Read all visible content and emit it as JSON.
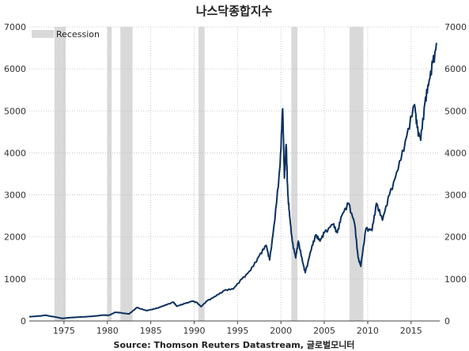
{
  "chart_data": {
    "type": "line",
    "title": "나스닥종합지수",
    "source": "Source: Thomson Reuters Datastream, 글로벌모니터",
    "xlabel": "",
    "ylabel": "",
    "xlim": [
      1971,
      2018.3
    ],
    "ylim": [
      0,
      7000
    ],
    "x_ticks": [
      1975,
      1980,
      1985,
      1990,
      1995,
      2000,
      2005,
      2010,
      2015
    ],
    "y_ticks": [
      0,
      1000,
      2000,
      3000,
      4000,
      5000,
      6000,
      7000
    ],
    "grid": true,
    "legend": {
      "position": "top-left",
      "entries": [
        "Recession"
      ]
    },
    "colors": {
      "line": "#0b3160",
      "recession": "#d9d9d9",
      "grid": "#bbbbbb"
    },
    "recessions": [
      [
        1973.9,
        1975.2
      ],
      [
        1980.0,
        1980.5
      ],
      [
        1981.5,
        1982.9
      ],
      [
        1990.5,
        1991.2
      ],
      [
        2001.2,
        2001.9
      ],
      [
        2007.9,
        2009.5
      ]
    ],
    "series": [
      {
        "values": [
          [
            1971.0,
            100
          ],
          [
            1972.0,
            115
          ],
          [
            1972.9,
            135
          ],
          [
            1973.5,
            110
          ],
          [
            1974.0,
            95
          ],
          [
            1974.8,
            60
          ],
          [
            1975.5,
            75
          ],
          [
            1976.5,
            90
          ],
          [
            1977.5,
            100
          ],
          [
            1978.5,
            115
          ],
          [
            1979.5,
            140
          ],
          [
            1980.2,
            135
          ],
          [
            1980.9,
            205
          ],
          [
            1981.5,
            195
          ],
          [
            1982.5,
            165
          ],
          [
            1983.4,
            320
          ],
          [
            1984.5,
            245
          ],
          [
            1985.5,
            290
          ],
          [
            1986.5,
            360
          ],
          [
            1987.6,
            450
          ],
          [
            1988.0,
            350
          ],
          [
            1989.0,
            420
          ],
          [
            1989.8,
            470
          ],
          [
            1990.3,
            440
          ],
          [
            1990.8,
            340
          ],
          [
            1991.5,
            480
          ],
          [
            1992.5,
            590
          ],
          [
            1993.5,
            730
          ],
          [
            1994.5,
            760
          ],
          [
            1995.5,
            1000
          ],
          [
            1996.5,
            1200
          ],
          [
            1997.5,
            1550
          ],
          [
            1998.3,
            1800
          ],
          [
            1998.7,
            1450
          ],
          [
            1999.3,
            2400
          ],
          [
            1999.9,
            3700
          ],
          [
            2000.2,
            5050
          ],
          [
            2000.4,
            3400
          ],
          [
            2000.6,
            4200
          ],
          [
            2000.8,
            3000
          ],
          [
            2001.0,
            2500
          ],
          [
            2001.3,
            1900
          ],
          [
            2001.7,
            1500
          ],
          [
            2002.0,
            1900
          ],
          [
            2002.5,
            1400
          ],
          [
            2002.8,
            1150
          ],
          [
            2003.5,
            1700
          ],
          [
            2004.0,
            2050
          ],
          [
            2004.5,
            1900
          ],
          [
            2005.0,
            2100
          ],
          [
            2006.0,
            2300
          ],
          [
            2006.5,
            2100
          ],
          [
            2007.0,
            2500
          ],
          [
            2007.8,
            2800
          ],
          [
            2008.5,
            2300
          ],
          [
            2008.9,
            1500
          ],
          [
            2009.2,
            1300
          ],
          [
            2009.8,
            2200
          ],
          [
            2010.5,
            2150
          ],
          [
            2011.0,
            2800
          ],
          [
            2011.7,
            2400
          ],
          [
            2012.5,
            3000
          ],
          [
            2013.5,
            3600
          ],
          [
            2014.5,
            4400
          ],
          [
            2015.4,
            5150
          ],
          [
            2015.7,
            4600
          ],
          [
            2016.1,
            4300
          ],
          [
            2016.6,
            5200
          ],
          [
            2017.0,
            5600
          ],
          [
            2017.5,
            6150
          ],
          [
            2018.0,
            6600
          ]
        ]
      }
    ]
  }
}
